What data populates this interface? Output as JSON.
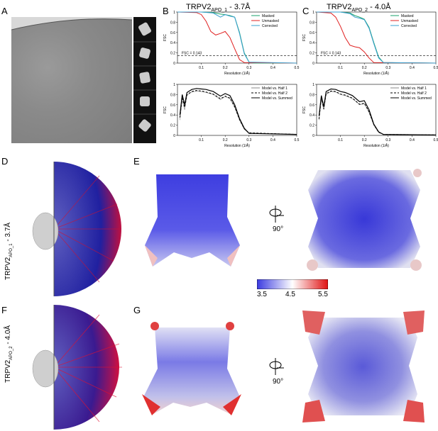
{
  "panels": {
    "A": "A",
    "B": "B",
    "C": "C",
    "D": "D",
    "E": "E",
    "F": "F",
    "G": "G"
  },
  "titles": {
    "B": {
      "main": "TRPV2",
      "sub": "APO_1",
      "tail": " - 3.7Å"
    },
    "C": {
      "main": "TRPV2",
      "sub": "APO_2",
      "tail": " - 4.0Å"
    },
    "D": {
      "main": "TRPV2",
      "sub": "APO_1",
      "tail": " - 3.7Å"
    },
    "F": {
      "main": "TRPV2",
      "sub": "APO_2",
      "tail": " - 4.0Å"
    }
  },
  "rotation_label": "90°",
  "colorbar": {
    "min": "3.5",
    "mid": "4.5",
    "max": "5.5",
    "colors": [
      "#3a3ae0",
      "#ffffff",
      "#e01010"
    ]
  },
  "chart_data": [
    {
      "type": "line",
      "panel": "B top",
      "xlabel": "Resolution (1/Å)",
      "ylabel": "FSC",
      "xlim": [
        0,
        0.5
      ],
      "ylim": [
        0,
        1
      ],
      "xticks": [
        "0.1",
        "0.2",
        "0.3",
        "0.4",
        "0.5"
      ],
      "yticks": [
        "0",
        "0.2",
        "0.4",
        "0.6",
        "0.8",
        "1"
      ],
      "annotation": "FSC = 0.143",
      "threshold": 0.143,
      "legend": [
        "Masked",
        "Unmasked",
        "Corrected"
      ],
      "series": [
        {
          "name": "Masked",
          "color": "#1aa36b",
          "x": [
            0,
            0.1,
            0.15,
            0.18,
            0.2,
            0.22,
            0.24,
            0.26,
            0.28,
            0.3,
            0.32,
            0.5
          ],
          "y": [
            1,
            1,
            0.99,
            0.96,
            0.95,
            0.93,
            0.9,
            0.6,
            0.2,
            0.02,
            0,
            0
          ]
        },
        {
          "name": "Unmasked",
          "color": "#e02020",
          "x": [
            0,
            0.08,
            0.1,
            0.12,
            0.14,
            0.16,
            0.18,
            0.2,
            0.22,
            0.24,
            0.26,
            0.28,
            0.5
          ],
          "y": [
            1,
            0.99,
            0.95,
            0.82,
            0.62,
            0.55,
            0.58,
            0.62,
            0.5,
            0.28,
            0.07,
            0.01,
            0
          ]
        },
        {
          "name": "Corrected",
          "color": "#3aa0d0",
          "x": [
            0,
            0.1,
            0.15,
            0.18,
            0.2,
            0.22,
            0.24,
            0.26,
            0.28,
            0.3,
            0.5
          ],
          "y": [
            1,
            1,
            0.98,
            0.9,
            0.95,
            0.92,
            0.9,
            0.58,
            0.18,
            0.02,
            0
          ]
        }
      ]
    },
    {
      "type": "line",
      "panel": "B bottom",
      "xlabel": "Resolution (1/Å)",
      "ylabel": "FSC",
      "xlim": [
        0,
        0.5
      ],
      "ylim": [
        0,
        1
      ],
      "xticks": [
        "0.1",
        "0.2",
        "0.3",
        "0.4",
        "0.5"
      ],
      "yticks": [
        "0",
        "0.2",
        "0.4",
        "0.6",
        "0.8",
        "1"
      ],
      "legend": [
        "Model vs. Half 1",
        "Model vs. Half 2",
        "Model vs. Summed"
      ],
      "series": [
        {
          "name": "Model vs. Half 1",
          "color": "#888888",
          "x": [
            0.01,
            0.02,
            0.03,
            0.04,
            0.06,
            0.08,
            0.1,
            0.12,
            0.15,
            0.18,
            0.2,
            0.22,
            0.24,
            0.26,
            0.28,
            0.3,
            0.5
          ],
          "y": [
            0.3,
            0.7,
            0.5,
            0.78,
            0.85,
            0.87,
            0.86,
            0.84,
            0.8,
            0.7,
            0.76,
            0.72,
            0.55,
            0.3,
            0.12,
            0.04,
            0.02
          ]
        },
        {
          "name": "Model vs. Half 2",
          "color": "#000000",
          "x": [
            0.01,
            0.02,
            0.03,
            0.04,
            0.06,
            0.08,
            0.1,
            0.12,
            0.15,
            0.18,
            0.2,
            0.22,
            0.24,
            0.26,
            0.28,
            0.3,
            0.5
          ],
          "y": [
            0.35,
            0.75,
            0.55,
            0.8,
            0.86,
            0.88,
            0.87,
            0.85,
            0.81,
            0.72,
            0.77,
            0.73,
            0.56,
            0.31,
            0.13,
            0.05,
            0.02
          ]
        },
        {
          "name": "Model vs. Summed",
          "color": "#000000",
          "x": [
            0.01,
            0.02,
            0.03,
            0.04,
            0.06,
            0.08,
            0.1,
            0.12,
            0.15,
            0.18,
            0.2,
            0.22,
            0.24,
            0.26,
            0.28,
            0.3,
            0.5
          ],
          "y": [
            0.4,
            0.8,
            0.6,
            0.84,
            0.9,
            0.92,
            0.91,
            0.9,
            0.86,
            0.77,
            0.82,
            0.78,
            0.6,
            0.33,
            0.14,
            0.04,
            0.02
          ]
        }
      ]
    },
    {
      "type": "line",
      "panel": "C top",
      "xlabel": "Resolution (1/Å)",
      "ylabel": "FSC",
      "xlim": [
        0,
        0.5
      ],
      "ylim": [
        0,
        1
      ],
      "xticks": [
        "0.1",
        "0.2",
        "0.3",
        "0.4",
        "0.5"
      ],
      "yticks": [
        "0",
        "0.2",
        "0.4",
        "0.6",
        "0.8",
        "1"
      ],
      "annotation": "FSC = 0.143",
      "threshold": 0.143,
      "legend": [
        "Masked",
        "Unmasked",
        "Corrected"
      ],
      "series": [
        {
          "name": "Masked",
          "color": "#1aa36b",
          "x": [
            0,
            0.1,
            0.14,
            0.16,
            0.18,
            0.2,
            0.22,
            0.24,
            0.26,
            0.28,
            0.5
          ],
          "y": [
            1,
            1,
            0.98,
            0.93,
            0.9,
            0.86,
            0.7,
            0.4,
            0.12,
            0.01,
            0
          ]
        },
        {
          "name": "Unmasked",
          "color": "#e02020",
          "x": [
            0,
            0.06,
            0.08,
            0.1,
            0.12,
            0.14,
            0.16,
            0.18,
            0.2,
            0.22,
            0.24,
            0.5
          ],
          "y": [
            1,
            0.98,
            0.9,
            0.72,
            0.5,
            0.35,
            0.32,
            0.3,
            0.22,
            0.1,
            0.01,
            0
          ]
        },
        {
          "name": "Corrected",
          "color": "#3aa0d0",
          "x": [
            0,
            0.1,
            0.14,
            0.16,
            0.18,
            0.2,
            0.22,
            0.24,
            0.26,
            0.28,
            0.5
          ],
          "y": [
            1,
            1,
            0.97,
            0.9,
            0.88,
            0.85,
            0.68,
            0.38,
            0.1,
            0.01,
            0
          ]
        }
      ]
    },
    {
      "type": "line",
      "panel": "C bottom",
      "xlabel": "Resolution (1/Å)",
      "ylabel": "FSC",
      "xlim": [
        0,
        0.5
      ],
      "ylim": [
        0,
        1
      ],
      "xticks": [
        "0.1",
        "0.2",
        "0.3",
        "0.4",
        "0.5"
      ],
      "yticks": [
        "0",
        "0.2",
        "0.4",
        "0.6",
        "0.8",
        "1"
      ],
      "legend": [
        "Model vs. Half 1",
        "Model vs. Half 2",
        "Model vs. Summed"
      ],
      "series": [
        {
          "name": "Model vs. Half 1",
          "color": "#888888",
          "x": [
            0.01,
            0.02,
            0.03,
            0.04,
            0.06,
            0.08,
            0.1,
            0.12,
            0.15,
            0.18,
            0.2,
            0.22,
            0.24,
            0.26,
            0.28,
            0.5
          ],
          "y": [
            0.3,
            0.72,
            0.5,
            0.8,
            0.86,
            0.85,
            0.8,
            0.78,
            0.72,
            0.6,
            0.62,
            0.45,
            0.2,
            0.06,
            0.02,
            0.01
          ]
        },
        {
          "name": "Model vs. Half 2",
          "color": "#000000",
          "x": [
            0.01,
            0.02,
            0.03,
            0.04,
            0.06,
            0.08,
            0.1,
            0.12,
            0.15,
            0.18,
            0.2,
            0.22,
            0.24,
            0.26,
            0.28,
            0.5
          ],
          "y": [
            0.32,
            0.74,
            0.52,
            0.82,
            0.87,
            0.86,
            0.81,
            0.79,
            0.73,
            0.61,
            0.63,
            0.46,
            0.21,
            0.06,
            0.02,
            0.01
          ]
        },
        {
          "name": "Model vs. Summed",
          "color": "#000000",
          "x": [
            0.01,
            0.02,
            0.03,
            0.04,
            0.06,
            0.08,
            0.1,
            0.12,
            0.15,
            0.18,
            0.2,
            0.22,
            0.24,
            0.26,
            0.28,
            0.5
          ],
          "y": [
            0.38,
            0.78,
            0.56,
            0.86,
            0.91,
            0.9,
            0.86,
            0.84,
            0.78,
            0.66,
            0.68,
            0.5,
            0.22,
            0.07,
            0.02,
            0.01
          ]
        }
      ]
    }
  ]
}
